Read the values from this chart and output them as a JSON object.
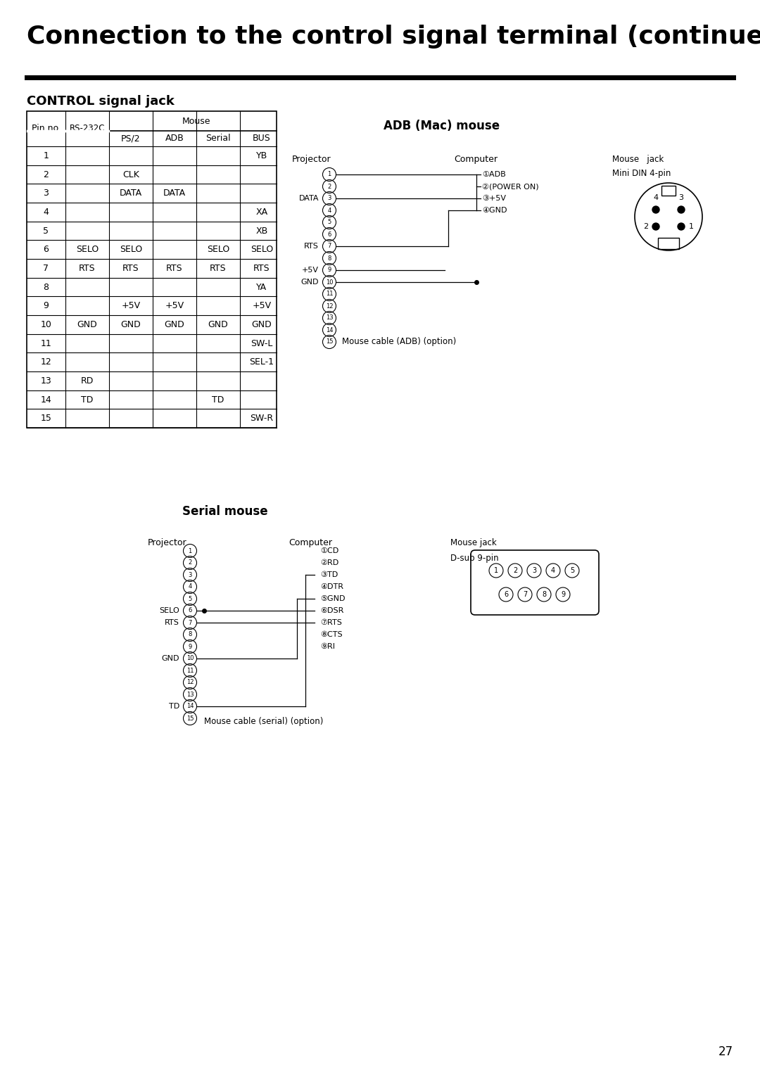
{
  "title": "Connection to the control signal terminal (continued)",
  "subtitle": "CONTROL signal jack",
  "table_data": [
    [
      "1",
      "",
      "",
      "",
      "",
      "YB"
    ],
    [
      "2",
      "",
      "CLK",
      "",
      "",
      ""
    ],
    [
      "3",
      "",
      "DATA",
      "DATA",
      "",
      ""
    ],
    [
      "4",
      "",
      "",
      "",
      "",
      "XA"
    ],
    [
      "5",
      "",
      "",
      "",
      "",
      "XB"
    ],
    [
      "6",
      "SELO",
      "SELO",
      "",
      "SELO",
      "SELO"
    ],
    [
      "7",
      "RTS",
      "RTS",
      "RTS",
      "RTS",
      "RTS"
    ],
    [
      "8",
      "",
      "",
      "",
      "",
      "YA"
    ],
    [
      "9",
      "",
      "+5V",
      "+5V",
      "",
      "+5V"
    ],
    [
      "10",
      "GND",
      "GND",
      "GND",
      "GND",
      "GND"
    ],
    [
      "11",
      "",
      "",
      "",
      "",
      "SW-L"
    ],
    [
      "12",
      "",
      "",
      "",
      "",
      "SEL-1"
    ],
    [
      "13",
      "RD",
      "",
      "",
      "",
      ""
    ],
    [
      "14",
      "TD",
      "",
      "",
      "TD",
      ""
    ],
    [
      "15",
      "",
      "",
      "",
      "",
      "SW-R"
    ]
  ],
  "adb_title": "ADB (Mac) mouse",
  "serial_title": "Serial mouse",
  "page_number": "27",
  "bg_color": "#ffffff",
  "title_fontsize": 26,
  "subtitle_fontsize": 13,
  "table_fontsize": 9,
  "diagram_fontsize": 8
}
